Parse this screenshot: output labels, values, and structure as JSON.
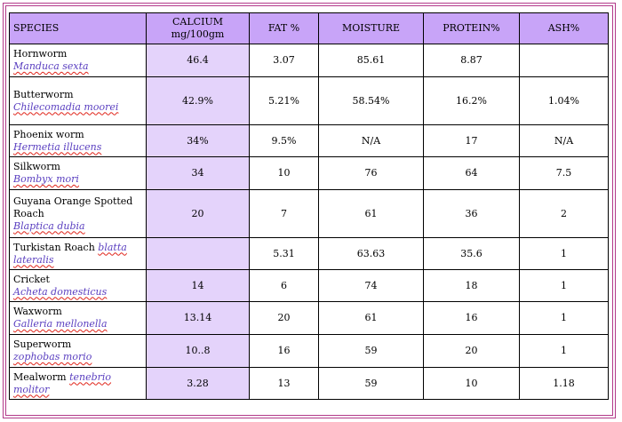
{
  "table": {
    "headers": {
      "species": "SPECIES",
      "calcium_1": "CALCIUM",
      "calcium_2": "mg/100gm",
      "fat": "FAT %",
      "moisture": "MOISTURE",
      "protein": "PROTEIN%",
      "ash": "ASH%"
    },
    "rows": [
      {
        "common": "Hornworm",
        "sci": "Manduca sexta",
        "calcium": "46.4",
        "fat": "3.07",
        "moisture": "85.61",
        "protein": "8.87",
        "ash": ""
      },
      {
        "common": "Butterworm",
        "sci": "Chilecomadia moorei",
        "calcium": "42.9%",
        "fat": "5.21%",
        "moisture": "58.54%",
        "protein": "16.2%",
        "ash": "1.04%"
      },
      {
        "common": "Phoenix worm",
        "sci": "Hermetia illucens",
        "calcium": "34%",
        "fat": "9.5%",
        "moisture": "N/A",
        "protein": "17",
        "ash": "N/A"
      },
      {
        "common": "Silkworm",
        "sci": "Bombyx mori",
        "calcium": "34",
        "fat": "10",
        "moisture": "76",
        "protein": "64",
        "ash": "7.5"
      },
      {
        "common": "Guyana Orange Spotted Roach",
        "sci": "Blaptica dubia",
        "calcium": "20",
        "fat": "7",
        "moisture": "61",
        "protein": "36",
        "ash": "2"
      },
      {
        "common": "Turkistan Roach",
        "sci": "blatta lateralis",
        "calcium": "",
        "fat": "5.31",
        "moisture": "63.63",
        "protein": "35.6",
        "ash": "1"
      },
      {
        "common": "Cricket",
        "sci": "Acheta domesticus",
        "calcium": "14",
        "fat": "6",
        "moisture": "74",
        "protein": "18",
        "ash": "1"
      },
      {
        "common": "Waxworm",
        "sci": "Galleria mellonella",
        "calcium": "13.14",
        "fat": "20",
        "moisture": "61",
        "protein": "16",
        "ash": "1"
      },
      {
        "common": "Superworm",
        "sci": "zophobas morio",
        "calcium": "10..8",
        "fat": "16",
        "moisture": "59",
        "protein": "20",
        "ash": "1"
      },
      {
        "common": "Mealworm",
        "sci": "tenebrio molitor",
        "calcium": "3.28",
        "fat": "13",
        "moisture": "59",
        "protein": "10",
        "ash": "1.18"
      }
    ]
  },
  "colors": {
    "header_bg": "#c8a4f8",
    "calcium_bg": "#e4d3fb",
    "border_accent": "#b23a8a",
    "scientific_name": "#5a3fc0"
  }
}
